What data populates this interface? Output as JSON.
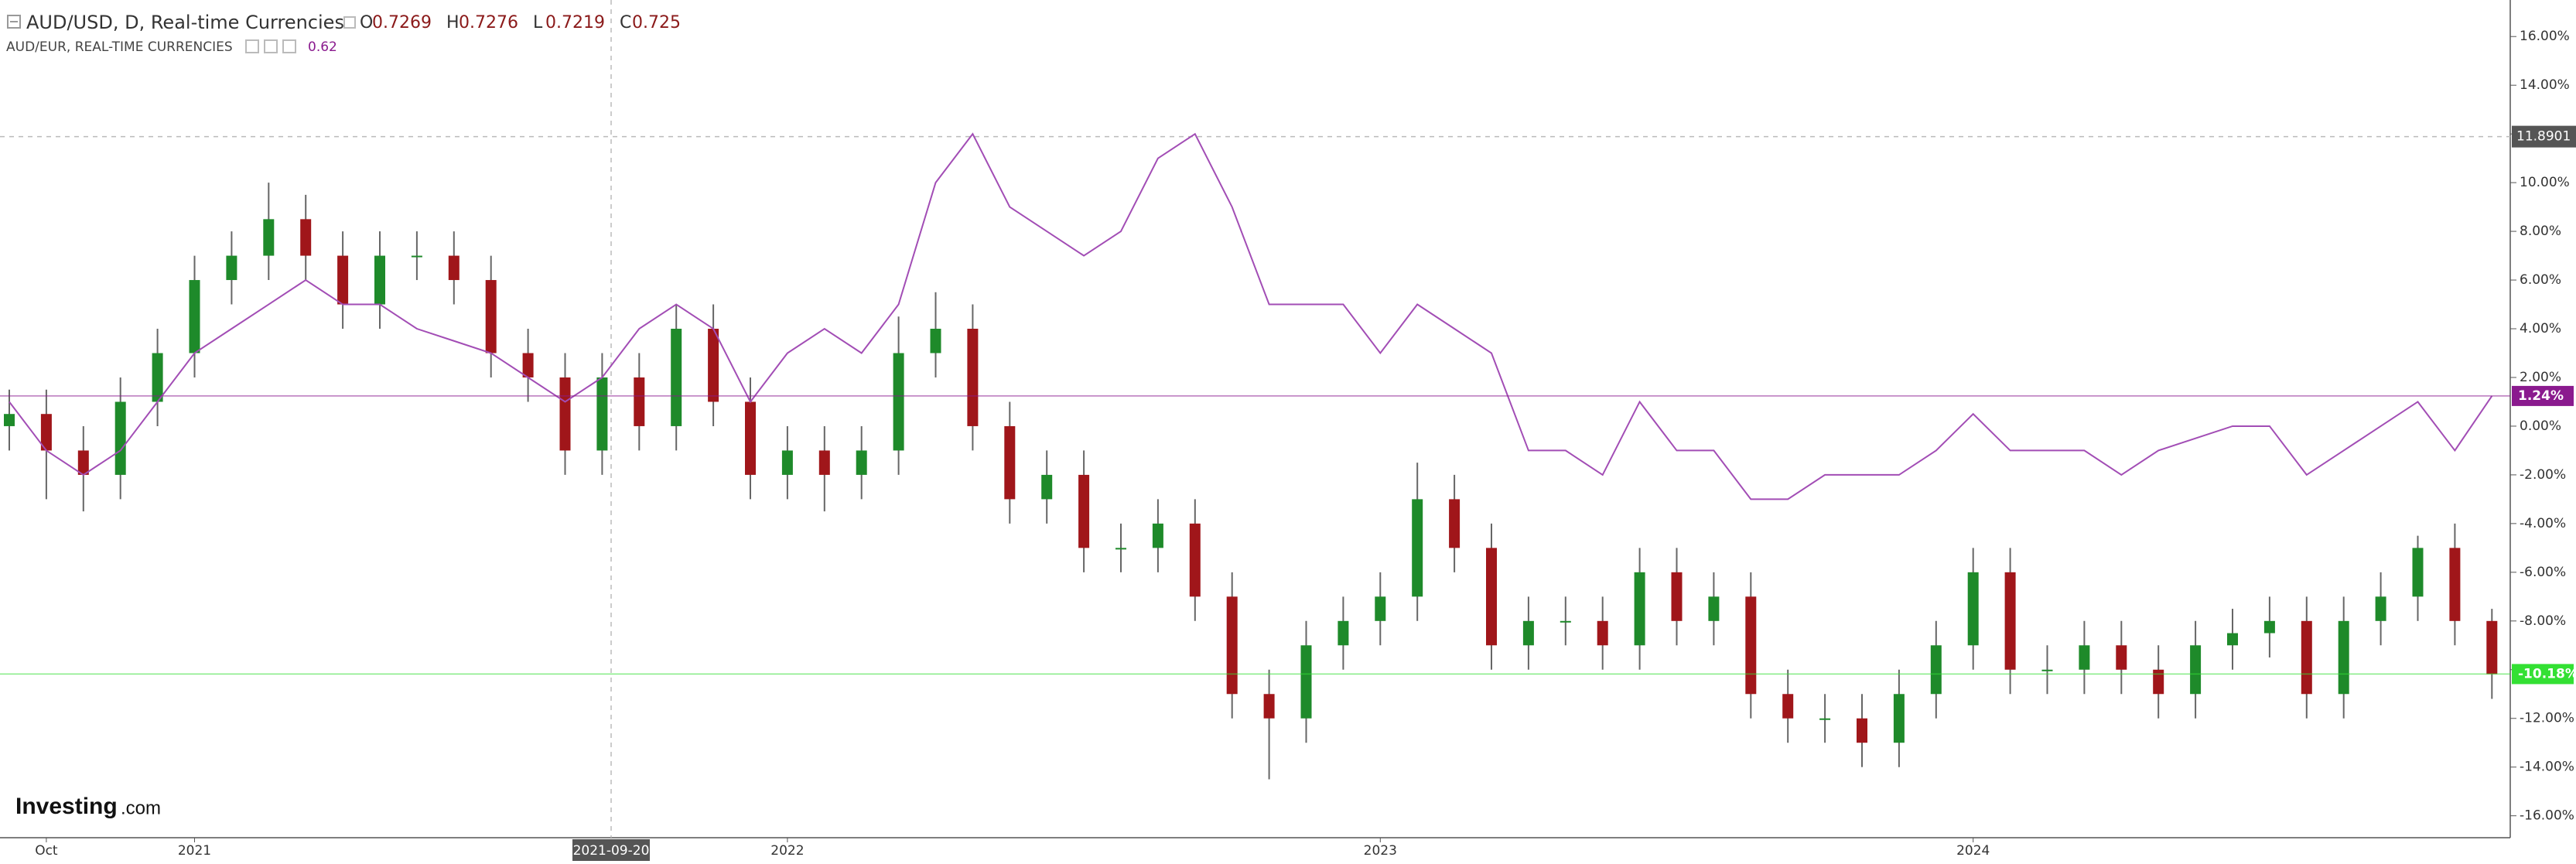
{
  "chart_data": {
    "type": "candlestick",
    "title": "AUD/USD, D, Real-time Currencies",
    "ohlc": [
      {
        "letter": "O",
        "value": 0.7269
      },
      {
        "letter": "H",
        "value": 0.7276
      },
      {
        "letter": "L",
        "value": 0.7219
      },
      {
        "letter": "C",
        "value": 0.725
      }
    ],
    "logo": {
      "brand": "Investing",
      "suffix": ".com"
    },
    "categories": [
      null,
      "Oct",
      null,
      null,
      null,
      "2021",
      null,
      null,
      null,
      null,
      null,
      null,
      null,
      null,
      null,
      null,
      null,
      null,
      null,
      null,
      null,
      "2022",
      null,
      null,
      null,
      null,
      null,
      null,
      null,
      null,
      null,
      null,
      null,
      null,
      null,
      null,
      null,
      "2023",
      null,
      null,
      null,
      null,
      null,
      null,
      null,
      null,
      null,
      null,
      null,
      null,
      null,
      null,
      null,
      "2024",
      null,
      null,
      null,
      null,
      null,
      null,
      null,
      null,
      null,
      null,
      null,
      null,
      null,
      null
    ],
    "series": [
      {
        "type": "candlestick",
        "up_color": "#1e8a2a",
        "down_color": "#a0161a",
        "last_label": "-10.18%",
        "last_color": "#33e033",
        "open": [
          0,
          0.5,
          -1,
          -2,
          1,
          3,
          6,
          7,
          8.5,
          7,
          5,
          7,
          7,
          6,
          3,
          2,
          -1,
          2,
          0,
          4,
          1,
          -2,
          -1,
          -2,
          -1,
          3,
          4,
          0,
          -3,
          -2,
          -5,
          -5,
          -4,
          -7,
          -11,
          -12,
          -9,
          -8,
          -7,
          -3,
          -5,
          -9,
          -8,
          -8,
          -9,
          -6,
          -8,
          -7,
          -11,
          -12,
          -12,
          -13,
          -11,
          -9,
          -6,
          -10,
          -10,
          -9,
          -10,
          -11,
          -9,
          -8.5,
          -8,
          -11,
          -8,
          -7,
          -5,
          -8
        ],
        "high": [
          1.5,
          1.5,
          0,
          2,
          4,
          7,
          8,
          10,
          9.5,
          8,
          8,
          8,
          8,
          7,
          4,
          3,
          3,
          3,
          5,
          5,
          2,
          0,
          0,
          0,
          4.5,
          5.5,
          5,
          1,
          -1,
          -1,
          -4,
          -3,
          -3,
          -6,
          -10,
          -8,
          -7,
          -6,
          -1.5,
          -2,
          -4,
          -7,
          -7,
          -7,
          -5,
          -5,
          -6,
          -6,
          -10,
          -11,
          -11,
          -10,
          -8,
          -5,
          -5,
          -9,
          -8,
          -8,
          -9,
          -8,
          -7.5,
          -7,
          -7,
          -7,
          -6,
          -4.5,
          -4,
          -7.5
        ],
        "low": [
          -1,
          -3,
          -3.5,
          -3,
          0,
          2,
          5,
          6,
          6,
          4,
          4,
          6,
          5,
          2,
          1,
          -2,
          -2,
          -1,
          -1,
          0,
          -3,
          -3,
          -3.5,
          -3,
          -2,
          2,
          -1,
          -4,
          -4,
          -6,
          -6,
          -6,
          -8,
          -12,
          -14.5,
          -13,
          -10,
          -9,
          -8,
          -6,
          -10,
          -10,
          -9,
          -10,
          -10,
          -9,
          -9,
          -12,
          -13,
          -13,
          -14,
          -14,
          -12,
          -10,
          -11,
          -11,
          -11,
          -11,
          -12,
          -12,
          -10,
          -9.5,
          -12,
          -12,
          -9,
          -8,
          -9,
          -11.2
        ],
        "close": [
          0.5,
          -1,
          -2,
          1,
          3,
          6,
          7,
          8.5,
          7,
          5,
          7,
          7,
          6,
          3,
          2,
          -1,
          2,
          0,
          4,
          1,
          -2,
          -1,
          -2,
          -1,
          3,
          4,
          0,
          -3,
          -2,
          -5,
          -5,
          -4,
          -7,
          -11,
          -12,
          -9,
          -8,
          -7,
          -3,
          -5,
          -9,
          -8,
          -8,
          -9,
          -6,
          -8,
          -7,
          -11,
          -12,
          -12,
          -13,
          -11,
          -9,
          -6,
          -10,
          -10,
          -9,
          -10,
          -11,
          -9,
          -8.5,
          -8,
          -11,
          -8,
          -7,
          -5,
          -8,
          -10.18
        ]
      },
      {
        "type": "line",
        "name": "AUD/EUR, REAL-TIME CURRENCIES",
        "legend_value": 0.62,
        "color": "#a24db5",
        "last_label": "1.24%",
        "last_color": "#8a1a8e",
        "values": [
          1,
          -1,
          -2,
          -1,
          1,
          3,
          4,
          5,
          6,
          5,
          5,
          4,
          3.5,
          3,
          2,
          1,
          2,
          4,
          5,
          4,
          1,
          3,
          4,
          3,
          5,
          10,
          12,
          9,
          8,
          7,
          8,
          11,
          12,
          9,
          5,
          5,
          5,
          3,
          5,
          4,
          3,
          -1,
          -1,
          -2,
          1,
          -1,
          -1,
          -3,
          -3,
          -2,
          -2,
          -2,
          -1,
          0.5,
          -1,
          -1,
          -1,
          -2,
          -1,
          -0.5,
          0,
          0,
          -2,
          -1,
          0,
          1,
          -1,
          1.24
        ]
      }
    ],
    "ylim": [
      -16.9,
      17.5
    ],
    "yticks": [
      {
        "value": 16,
        "label": "16.00%"
      },
      {
        "value": 14,
        "label": "14.00%"
      },
      {
        "value": 12,
        "label": "12.00%"
      },
      {
        "value": 10,
        "label": "10.00%"
      },
      {
        "value": 8,
        "label": "8.00%"
      },
      {
        "value": 6,
        "label": "6.00%"
      },
      {
        "value": 4,
        "label": "4.00%"
      },
      {
        "value": 2,
        "label": "2.00%"
      },
      {
        "value": 0,
        "label": "0.00%"
      },
      {
        "value": -2,
        "label": "-2.00%"
      },
      {
        "value": -4,
        "label": "-4.00%"
      },
      {
        "value": -6,
        "label": "-6.00%"
      },
      {
        "value": -8,
        "label": "-8.00%"
      },
      {
        "value": -10,
        "label": "-10.00%"
      },
      {
        "value": -12,
        "label": "-12.00%"
      },
      {
        "value": -14,
        "label": "-14.00%"
      },
      {
        "value": -16,
        "label": "-16.00%"
      }
    ],
    "crosshair": {
      "x_label": "2021-09-20",
      "y": 11.8901
    },
    "grid": false
  }
}
